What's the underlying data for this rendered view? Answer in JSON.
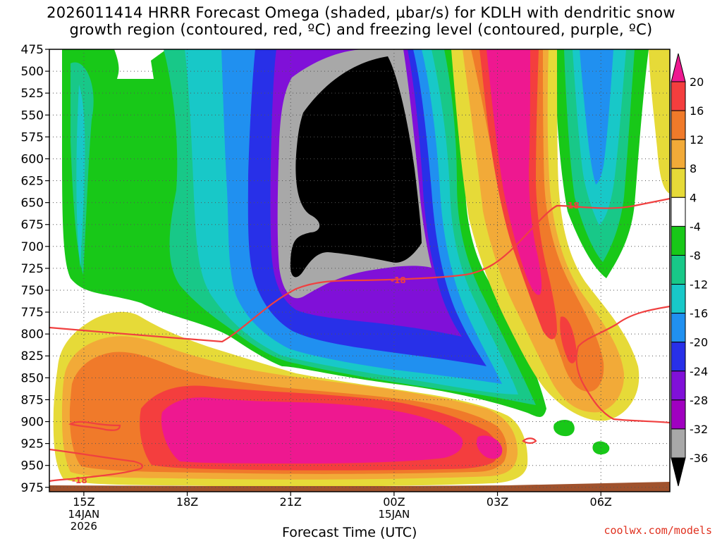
{
  "title": {
    "line1": "2026011414 HRRR Forecast Omega (shaded, µbar/s) for KDLH with dendritic snow",
    "line2": "growth region (contoured, red, ºC) and freezing level (contoured, purple, ºC)"
  },
  "credit": "coolwx.com/models",
  "chart_data": {
    "type": "heatmap",
    "xlabel": "Forecast Time (UTC)",
    "x_ticks": [
      {
        "label": "15Z",
        "sub": [
          "14JAN",
          "2026"
        ],
        "hour": 15
      },
      {
        "label": "18Z",
        "sub": [],
        "hour": 18
      },
      {
        "label": "21Z",
        "sub": [],
        "hour": 21
      },
      {
        "label": "00Z",
        "sub": [
          "15JAN"
        ],
        "hour": 24
      },
      {
        "label": "03Z",
        "sub": [],
        "hour": 27
      },
      {
        "label": "06Z",
        "sub": [],
        "hour": 30
      }
    ],
    "xlim": [
      14.0,
      32.0
    ],
    "y_ticks": [
      475,
      500,
      525,
      550,
      575,
      600,
      625,
      650,
      675,
      700,
      725,
      750,
      775,
      800,
      825,
      850,
      875,
      900,
      925,
      950,
      975
    ],
    "ylim": [
      475,
      980
    ],
    "colorbar": {
      "labels": [
        "20",
        "16",
        "12",
        "8",
        "4",
        "-4",
        "-8",
        "-12",
        "-16",
        "-20",
        "-24",
        "-28",
        "-32",
        "-36"
      ],
      "bands": [
        {
          "color": "#ee1890",
          "label": ">20"
        },
        {
          "color": "#f43e3e",
          "label": "16 to 20"
        },
        {
          "color": "#f07a2a",
          "label": "12 to 16"
        },
        {
          "color": "#f2aa38",
          "label": "8 to 12"
        },
        {
          "color": "#e6da38",
          "label": "4 to 8"
        },
        {
          "color": "#ffffff",
          "label": "-4 to 4"
        },
        {
          "color": "#18c818",
          "label": "-8 to -4"
        },
        {
          "color": "#18c888",
          "label": "-12 to -8"
        },
        {
          "color": "#18c8c8",
          "label": "-16 to -12"
        },
        {
          "color": "#2090f0",
          "label": "-20 to -16"
        },
        {
          "color": "#2830e8",
          "label": "-24 to -20"
        },
        {
          "color": "#8010d8",
          "label": "-28 to -24"
        },
        {
          "color": "#a000c0",
          "label": "-32 to -28"
        },
        {
          "color": "#a8a8a8",
          "label": "-36 to -32"
        },
        {
          "color": "#000000",
          "label": "<-36"
        }
      ]
    },
    "contour_label": "-18",
    "series": [
      {
        "hour": 15.0,
        "omega_max_lower": 14,
        "omega_min_upper": -12
      },
      {
        "hour": 18.0,
        "omega_max_lower": 22,
        "omega_min_upper": -16
      },
      {
        "hour": 21.0,
        "omega_max_lower": 22,
        "omega_min_upper": -40
      },
      {
        "hour": 24.0,
        "omega_max_lower": 22,
        "omega_min_upper": -40
      },
      {
        "hour": 27.0,
        "omega_max_lower": 22,
        "omega_min_upper": -12
      },
      {
        "hour": 30.0,
        "omega_max_lower": 14,
        "omega_min_upper": -16
      }
    ],
    "grid": true
  }
}
